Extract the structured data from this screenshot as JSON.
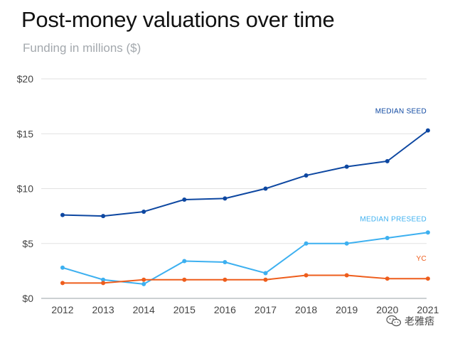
{
  "chart_data": {
    "type": "line",
    "title": "Post-money valuations over time",
    "subtitle": "Funding in millions ($)",
    "xlabel": "",
    "ylabel": "",
    "categories": [
      "2012",
      "2013",
      "2014",
      "2015",
      "2016",
      "2017",
      "2018",
      "2019",
      "2020",
      "2021"
    ],
    "ylim": [
      0,
      20
    ],
    "yticks": [
      0,
      5,
      10,
      15,
      20
    ],
    "ytick_labels": [
      "$0",
      "$5",
      "$10",
      "$15",
      "$20"
    ],
    "grid": true,
    "series": [
      {
        "name": "MEDIAN SEED",
        "color": "#0d47a1",
        "values": [
          7.6,
          7.5,
          7.9,
          9.0,
          9.1,
          10.0,
          11.2,
          12.0,
          12.5,
          15.3
        ]
      },
      {
        "name": "MEDIAN PRESEED",
        "color": "#3db0f0",
        "values": [
          2.8,
          1.7,
          1.3,
          3.4,
          3.3,
          2.3,
          5.0,
          5.0,
          5.5,
          6.0
        ]
      },
      {
        "name": "YC",
        "color": "#ee5d1c",
        "values": [
          1.4,
          1.4,
          1.7,
          1.7,
          1.7,
          1.7,
          2.1,
          2.1,
          1.8,
          1.8
        ]
      }
    ]
  },
  "watermark": {
    "text": "老雅痞",
    "icon": "wechat-icon"
  }
}
